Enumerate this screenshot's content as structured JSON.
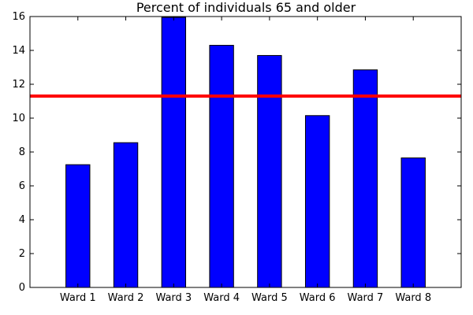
{
  "chart_data": {
    "type": "bar",
    "title": "Percent of individuals 65 and older",
    "xlabel": "",
    "ylabel": "",
    "categories": [
      "Ward 1",
      "Ward 2",
      "Ward 3",
      "Ward 4",
      "Ward 5",
      "Ward 6",
      "Ward 7",
      "Ward 8"
    ],
    "values": [
      7.25,
      8.55,
      15.95,
      14.3,
      13.7,
      10.15,
      12.85,
      7.65
    ],
    "ylim": [
      0,
      16
    ],
    "yticks": [
      "0",
      "2",
      "4",
      "6",
      "8",
      "10",
      "12",
      "14",
      "16"
    ],
    "reference_line": {
      "value": 11.3,
      "color": "#ff0000"
    },
    "bar_color": "#0000ff",
    "bar_edge_color": "#000000",
    "grid": false,
    "legend": "none"
  }
}
